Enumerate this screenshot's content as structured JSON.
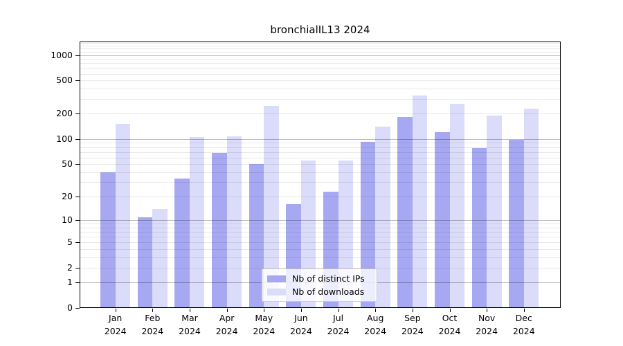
{
  "chart_data": {
    "type": "bar",
    "title": "bronchialIL13 2024",
    "categories": [
      "Jan",
      "Feb",
      "Mar",
      "Apr",
      "May",
      "Jun",
      "Jul",
      "Aug",
      "Sep",
      "Oct",
      "Nov",
      "Dec"
    ],
    "x_year": "2024",
    "series": [
      {
        "name": "Nb of distinct IPs",
        "color": "#a7a8f2",
        "values": [
          40,
          11,
          33,
          68,
          50,
          16,
          23,
          93,
          183,
          120,
          78,
          97
        ]
      },
      {
        "name": "Nb of downloads",
        "color": "#dadcf9",
        "values": [
          153,
          14,
          105,
          108,
          250,
          55,
          55,
          140,
          330,
          263,
          190,
          232
        ]
      }
    ],
    "y_axis": {
      "scale": "log10(1+y)",
      "ylim": [
        0,
        1448
      ],
      "tick_values": [
        0,
        1,
        2,
        5,
        10,
        20,
        50,
        100,
        200,
        500,
        1000
      ],
      "tick_labels": [
        "0",
        "1",
        "2",
        "5",
        "10",
        "20",
        "50",
        "100",
        "200",
        "500",
        "1000"
      ],
      "major_gridline_values": [
        1,
        10,
        100,
        1000
      ],
      "minor_gridline_values": [
        2,
        3,
        4,
        5,
        6,
        7,
        8,
        9,
        20,
        30,
        40,
        50,
        60,
        70,
        80,
        90,
        200,
        300,
        400,
        500,
        600,
        700,
        800,
        900,
        1100,
        1200,
        1300,
        1400
      ]
    },
    "legend": {
      "position": "bottom-center",
      "entries": [
        "Nb of distinct IPs",
        "Nb of downloads"
      ]
    },
    "grid": true,
    "xlabel": "",
    "ylabel": ""
  }
}
